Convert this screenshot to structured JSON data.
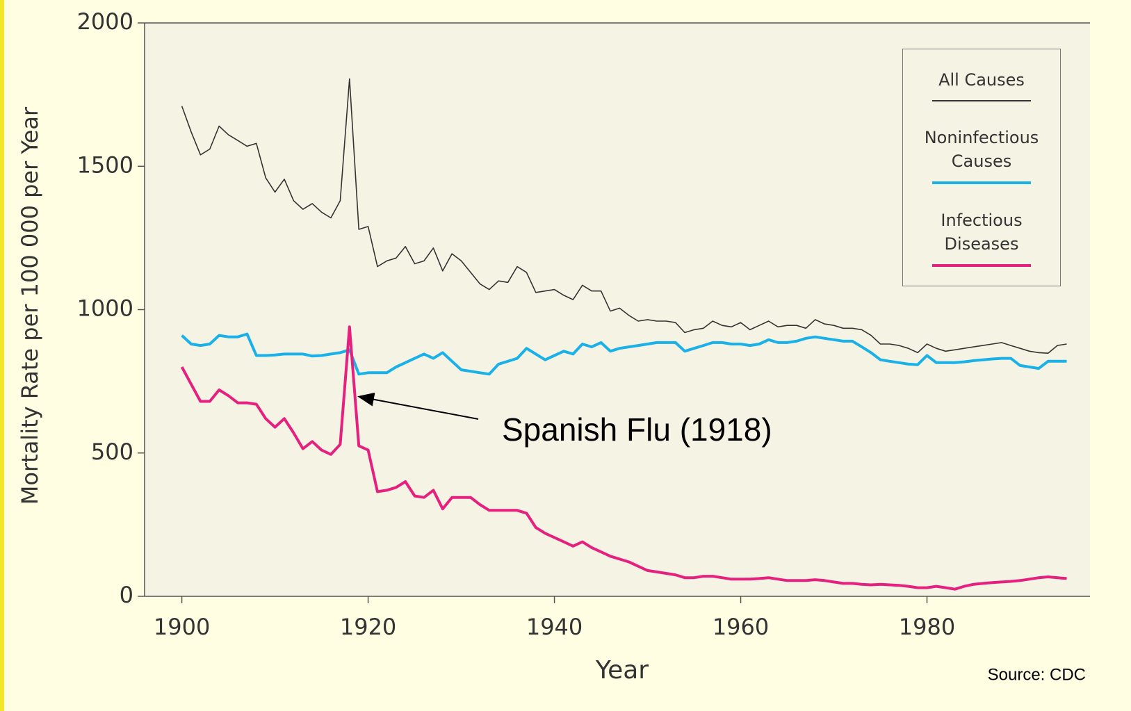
{
  "chart_data": {
    "type": "line",
    "x_label": "Year",
    "y_label": "Mortality Rate per 100 000 per Year",
    "annotation": "Spanish Flu (1918)",
    "source": "Source: CDC",
    "xlim": [
      1896,
      1997.5
    ],
    "xticks": [
      1900,
      1920,
      1940,
      1960,
      1980
    ],
    "ylim": [
      0,
      2000
    ],
    "yticks": [
      0,
      500,
      1000,
      1500,
      2000
    ],
    "x": [
      1900,
      1901,
      1902,
      1903,
      1904,
      1905,
      1906,
      1907,
      1908,
      1909,
      1910,
      1911,
      1912,
      1913,
      1914,
      1915,
      1916,
      1917,
      1918,
      1919,
      1920,
      1921,
      1922,
      1923,
      1924,
      1925,
      1926,
      1927,
      1928,
      1929,
      1930,
      1931,
      1932,
      1933,
      1934,
      1935,
      1936,
      1937,
      1938,
      1939,
      1940,
      1941,
      1942,
      1943,
      1944,
      1945,
      1946,
      1947,
      1948,
      1949,
      1950,
      1951,
      1952,
      1953,
      1954,
      1955,
      1956,
      1957,
      1958,
      1959,
      1960,
      1961,
      1962,
      1963,
      1964,
      1965,
      1966,
      1967,
      1968,
      1969,
      1970,
      1971,
      1972,
      1973,
      1974,
      1975,
      1976,
      1977,
      1978,
      1979,
      1980,
      1981,
      1982,
      1983,
      1984,
      1985,
      1986,
      1987,
      1988,
      1989,
      1990,
      1991,
      1992,
      1993,
      1994,
      1995
    ],
    "series": [
      {
        "name": "All Causes",
        "color": "#333333",
        "values": [
          1710,
          1620,
          1540,
          1560,
          1640,
          1610,
          1590,
          1570,
          1580,
          1460,
          1410,
          1455,
          1380,
          1350,
          1370,
          1340,
          1320,
          1380,
          1805,
          1280,
          1290,
          1150,
          1170,
          1180,
          1220,
          1160,
          1170,
          1215,
          1135,
          1195,
          1170,
          1130,
          1090,
          1070,
          1100,
          1095,
          1150,
          1130,
          1060,
          1065,
          1070,
          1050,
          1035,
          1085,
          1065,
          1065,
          995,
          1005,
          980,
          960,
          965,
          960,
          960,
          955,
          920,
          930,
          935,
          960,
          945,
          940,
          955,
          930,
          945,
          960,
          940,
          945,
          945,
          935,
          965,
          950,
          945,
          935,
          935,
          930,
          910,
          880,
          880,
          875,
          865,
          850,
          880,
          865,
          855,
          860,
          865,
          870,
          875,
          880,
          885,
          875,
          865,
          855,
          850,
          848,
          875,
          880
        ]
      },
      {
        "name": "Noninfectious Causes",
        "color": "#1ab0e8",
        "values": [
          910,
          880,
          875,
          880,
          910,
          905,
          905,
          915,
          840,
          840,
          842,
          845,
          845,
          845,
          838,
          840,
          845,
          850,
          860,
          775,
          780,
          780,
          780,
          800,
          815,
          830,
          845,
          830,
          850,
          820,
          790,
          785,
          780,
          775,
          810,
          820,
          830,
          865,
          845,
          825,
          840,
          855,
          845,
          880,
          870,
          885,
          855,
          865,
          870,
          875,
          880,
          885,
          885,
          885,
          855,
          865,
          875,
          885,
          885,
          880,
          880,
          875,
          880,
          895,
          885,
          885,
          890,
          900,
          905,
          900,
          895,
          890,
          890,
          870,
          850,
          825,
          820,
          815,
          810,
          808,
          840,
          815,
          815,
          815,
          818,
          822,
          825,
          828,
          830,
          830,
          805,
          800,
          795,
          820,
          820,
          820
        ]
      },
      {
        "name": "Infectious Diseases",
        "color": "#e6207e",
        "values": [
          800,
          740,
          680,
          680,
          720,
          700,
          675,
          675,
          670,
          620,
          590,
          620,
          570,
          515,
          540,
          510,
          495,
          530,
          940,
          525,
          510,
          365,
          370,
          380,
          400,
          350,
          345,
          370,
          305,
          345,
          345,
          345,
          320,
          300,
          300,
          300,
          300,
          290,
          240,
          220,
          205,
          190,
          175,
          190,
          170,
          155,
          140,
          130,
          120,
          105,
          90,
          85,
          80,
          75,
          65,
          65,
          70,
          70,
          65,
          60,
          60,
          60,
          62,
          65,
          60,
          55,
          55,
          55,
          58,
          55,
          50,
          45,
          45,
          42,
          40,
          42,
          40,
          38,
          35,
          30,
          30,
          35,
          30,
          25,
          35,
          42,
          45,
          48,
          50,
          52,
          55,
          60,
          65,
          68,
          65,
          62
        ]
      }
    ]
  }
}
